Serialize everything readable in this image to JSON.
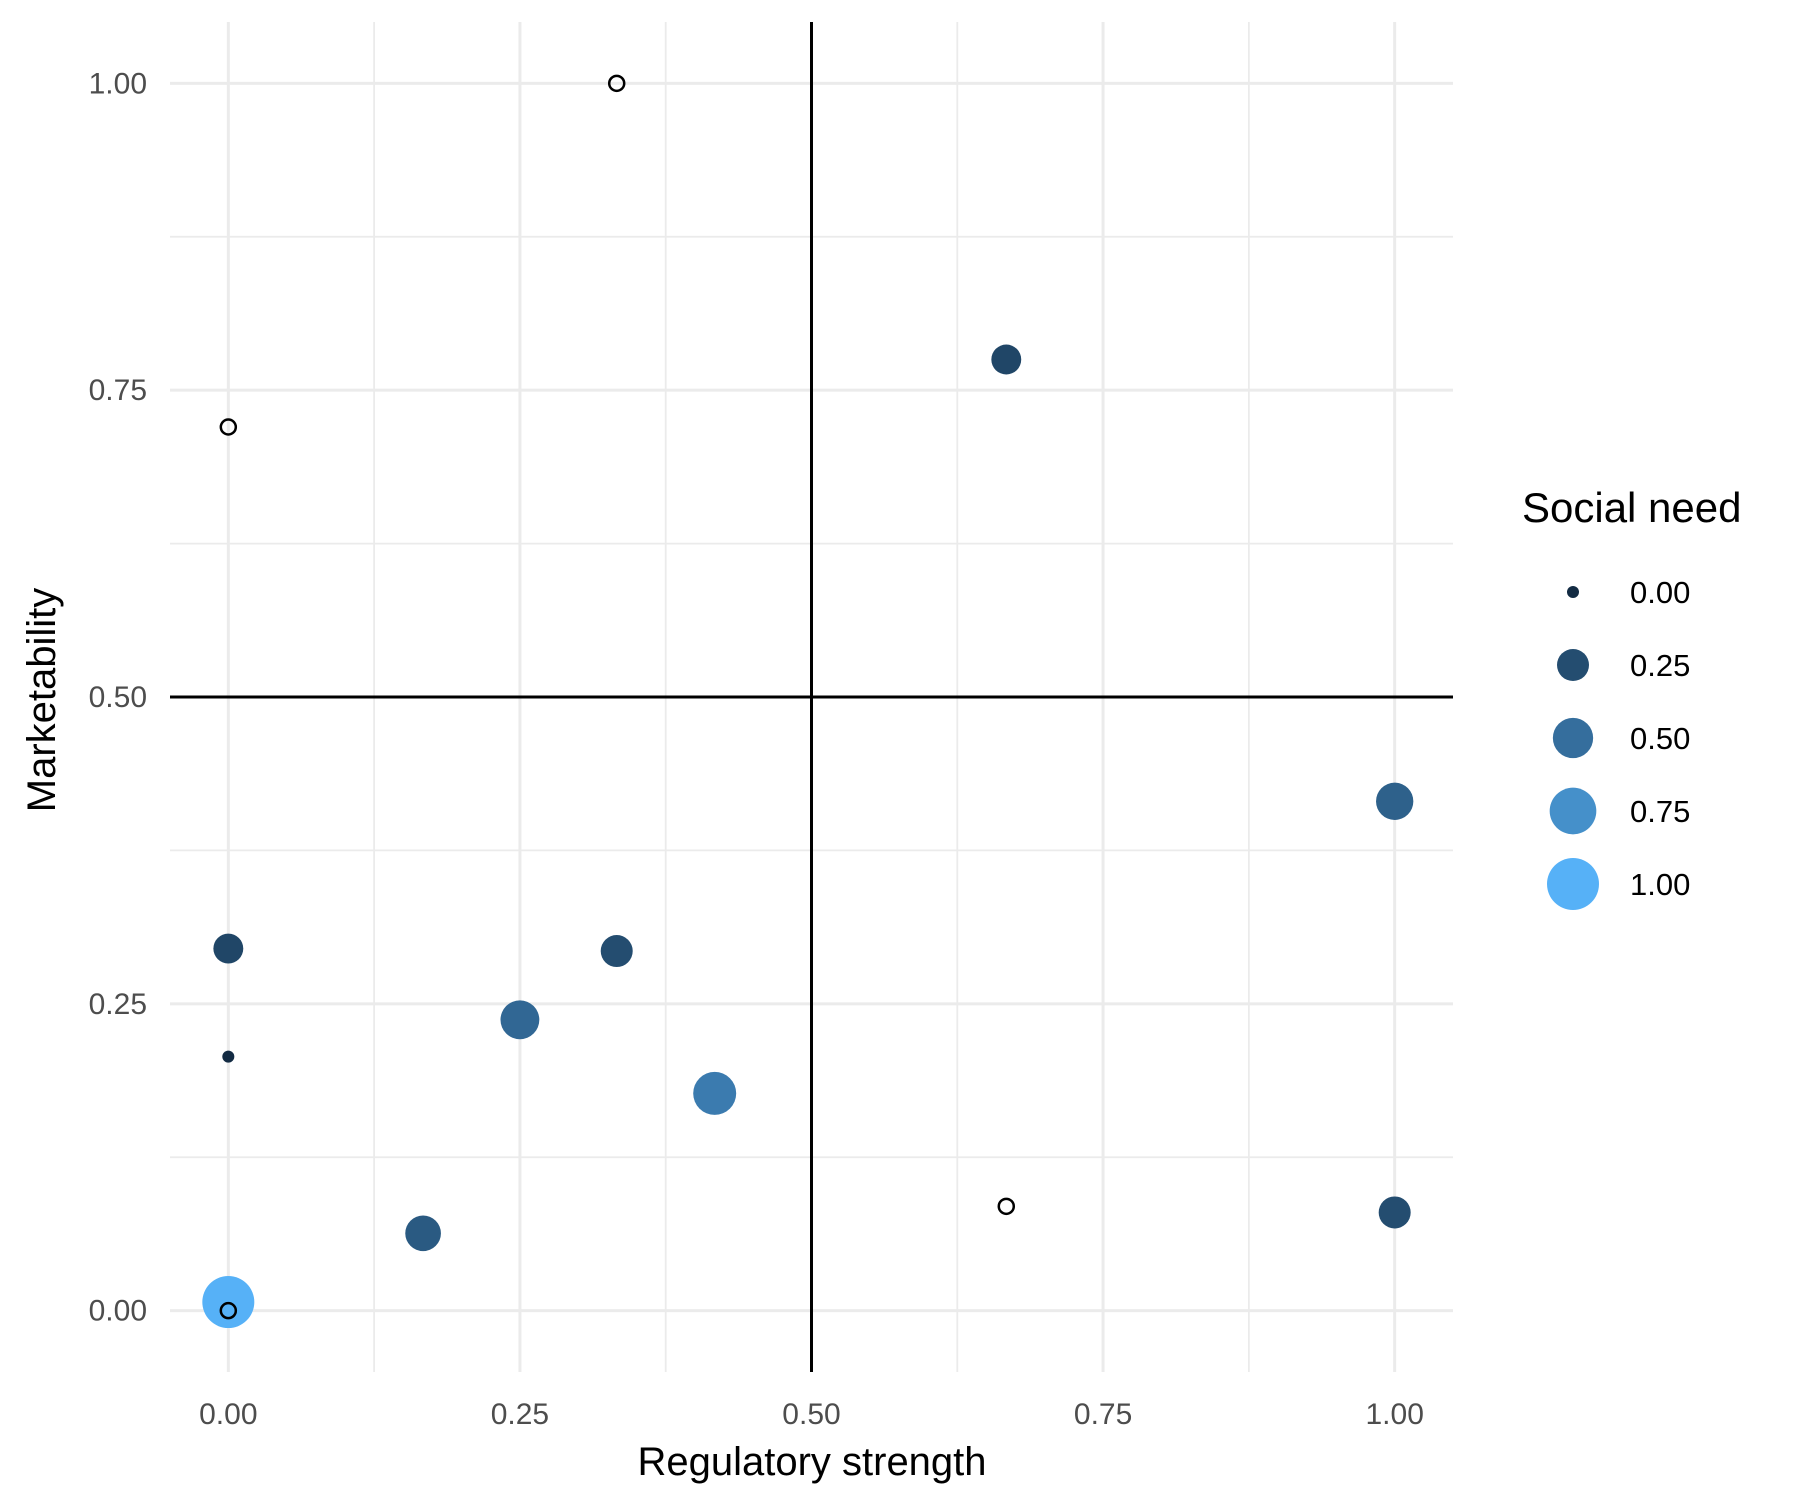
{
  "chart_data": {
    "type": "scatter",
    "title": "",
    "xlabel": "Regulatory strength",
    "ylabel": "Marketability",
    "xlim": [
      -0.05,
      1.05
    ],
    "ylim": [
      -0.05,
      1.05
    ],
    "x_ticks": [
      0,
      0.25,
      0.5,
      0.75,
      1
    ],
    "x_tick_labels": [
      "0.00",
      "0.25",
      "0.50",
      "0.75",
      "1.00"
    ],
    "y_ticks": [
      0,
      0.25,
      0.5,
      0.75,
      1
    ],
    "y_tick_labels": [
      "0.00",
      "0.25",
      "0.50",
      "0.75",
      "1.00"
    ],
    "grid": true,
    "reference_lines": {
      "x": 0.5,
      "y": 0.5
    },
    "size_variable": "Social need",
    "points": [
      {
        "x": 0.333,
        "y": 1.0,
        "social_need": null
      },
      {
        "x": 0.0,
        "y": 0.72,
        "social_need": null
      },
      {
        "x": 0.667,
        "y": 0.775,
        "social_need": 0.2
      },
      {
        "x": 1.0,
        "y": 0.415,
        "social_need": 0.4
      },
      {
        "x": 0.0,
        "y": 0.295,
        "social_need": 0.2
      },
      {
        "x": 0.333,
        "y": 0.293,
        "social_need": 0.25
      },
      {
        "x": 0.25,
        "y": 0.237,
        "social_need": 0.45
      },
      {
        "x": 0.0,
        "y": 0.207,
        "social_need": 0.0
      },
      {
        "x": 0.417,
        "y": 0.177,
        "social_need": 0.6
      },
      {
        "x": 0.667,
        "y": 0.085,
        "social_need": null
      },
      {
        "x": 1.0,
        "y": 0.08,
        "social_need": 0.25
      },
      {
        "x": 0.167,
        "y": 0.063,
        "social_need": 0.35
      },
      {
        "x": 0.0,
        "y": 0.007,
        "social_need": 1.0
      },
      {
        "x": 0.0,
        "y": 0.0,
        "social_need": null
      }
    ],
    "legend": {
      "title": "Social need",
      "position": "right",
      "entries": [
        {
          "value": 0.0,
          "label": "0.00"
        },
        {
          "value": 0.25,
          "label": "0.25"
        },
        {
          "value": 0.5,
          "label": "0.50"
        },
        {
          "value": 0.75,
          "label": "0.75"
        },
        {
          "value": 1.0,
          "label": "1.00"
        }
      ]
    },
    "colors": {
      "low": "#132b43",
      "high": "#56b1f7",
      "grid": "#ebebeb",
      "reference_line": "#000000",
      "missing_stroke": "#000000"
    }
  }
}
